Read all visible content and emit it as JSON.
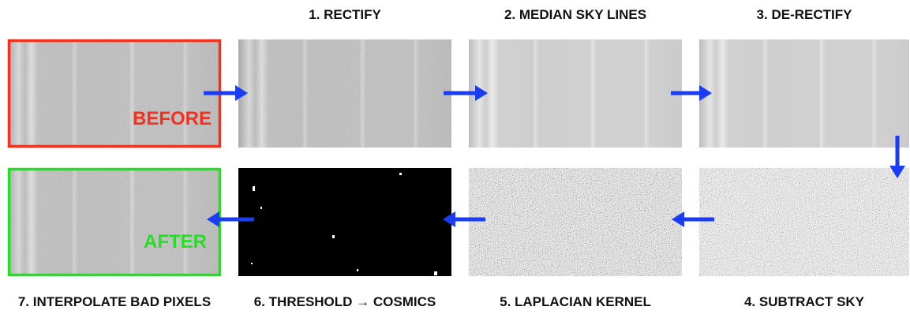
{
  "top_labels": [
    "1. RECTIFY",
    "2. MEDIAN SKY LINES",
    "3. DE-RECTIFY"
  ],
  "bottom_labels": [
    "7. INTERPOLATE BAD PIXELS",
    "6. THRESHOLD → COSMICS",
    "5. LAPLACIAN KERNEL",
    "4. SUBTRACT SKY"
  ],
  "before_label": "BEFORE",
  "after_label": "AFTER"
}
